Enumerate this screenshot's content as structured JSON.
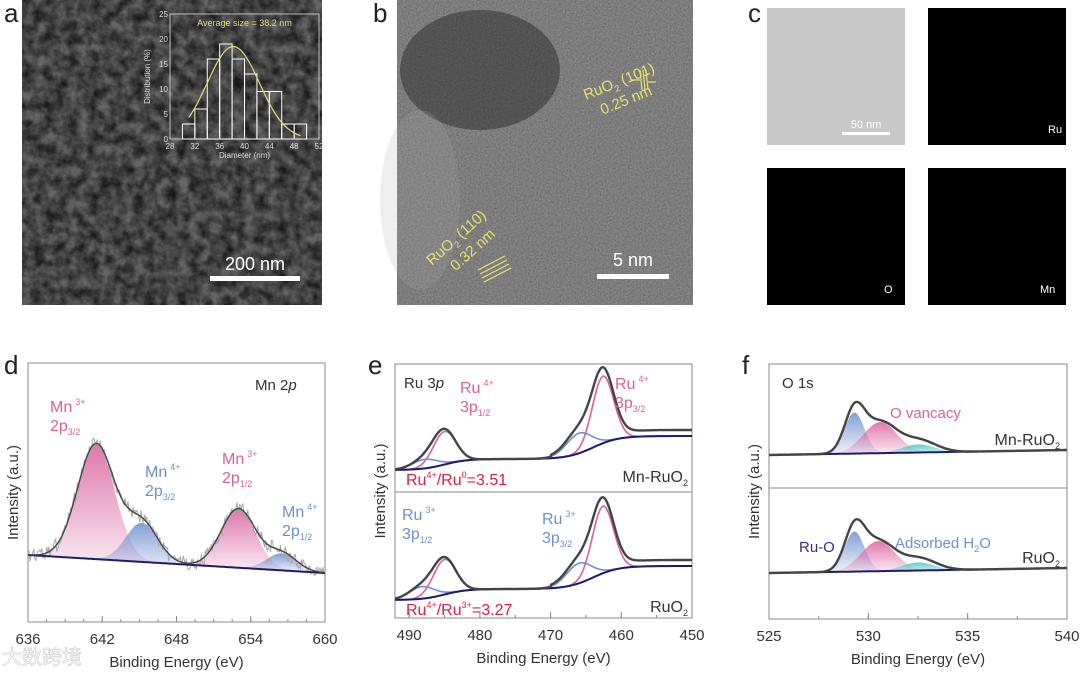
{
  "panels": {
    "a": {
      "label": "a",
      "scale_bar": "200 nm"
    },
    "b": {
      "label": "b",
      "scale_bar": "5 nm",
      "annot1": {
        "main": "RuO",
        "sub": "2",
        "hkl": " (101)",
        "d": "0.25 nm"
      },
      "annot2": {
        "main": "RuO",
        "sub": "2",
        "hkl": " (110)",
        "d": "0.32 nm"
      }
    },
    "c": {
      "label": "c",
      "scale_bar": "50 nm",
      "maps": [
        "Ru",
        "O",
        "Mn"
      ]
    },
    "d": {
      "label": "d"
    },
    "e": {
      "label": "e"
    },
    "f": {
      "label": "f"
    }
  },
  "colors": {
    "mn3": "#d9609f",
    "mn4": "#6f8fcf",
    "baseline": "#1e1a6e",
    "envelope": "#444444",
    "raw": "#a8a8a8",
    "teal": "#3fc8c0",
    "ratio": "#d8204a",
    "annot": "#e8e070"
  },
  "watermark": "大数跨境",
  "chart_data": [
    {
      "panel": "a-inset",
      "type": "bar",
      "title": "Average size = 38.2 nm",
      "xlabel": "Diameter (nm)",
      "ylabel": "Distribution (%)",
      "xlim": [
        28,
        52
      ],
      "ylim": [
        0,
        25
      ],
      "xticks": [
        "28",
        "32",
        "36",
        "40",
        "44",
        "48",
        "52"
      ],
      "yticks": [
        "0",
        "5",
        "10",
        "15",
        "20",
        "25"
      ],
      "bin_edges": [
        30,
        32,
        34,
        36,
        38,
        40,
        42,
        44,
        46,
        48,
        50
      ],
      "values": [
        3,
        6,
        16,
        19,
        16,
        13,
        9.5,
        9.5,
        3,
        3
      ],
      "fit": "gaussian",
      "fit_mean": 38.2
    },
    {
      "panel": "d",
      "type": "line",
      "annotation": {
        "main": "Mn 2",
        "ital": "p"
      },
      "xlabel": "Binding Energy (eV)",
      "ylabel": "Intensity (a.u.)",
      "xlim": [
        636,
        660
      ],
      "xticks": [
        "636",
        "642",
        "648",
        "654",
        "660"
      ],
      "components": [
        {
          "ion": "Mn",
          "charge": "3+",
          "orbital": "2p",
          "j": "3/2",
          "center": 641.5,
          "height": 115,
          "sigma": 1.5,
          "color": "#d9609f"
        },
        {
          "ion": "Mn",
          "charge": "4+",
          "orbital": "2p",
          "j": "3/2",
          "center": 645.2,
          "height": 39,
          "sigma": 1.3,
          "color": "#6f8fcf"
        },
        {
          "ion": "Mn",
          "charge": "3+",
          "orbital": "2p",
          "j": "1/2",
          "center": 653.0,
          "height": 59,
          "sigma": 1.4,
          "color": "#d9609f"
        },
        {
          "ion": "Mn",
          "charge": "4+",
          "orbital": "2p",
          "j": "1/2",
          "center": 656.5,
          "height": 17,
          "sigma": 1.2,
          "color": "#6f8fcf"
        }
      ]
    },
    {
      "panel": "e",
      "type": "line",
      "annotation": {
        "main": "Ru 3",
        "ital": "p"
      },
      "xlabel": "Binding Energy (eV)",
      "ylabel": "Intensity (a.u.)",
      "xlim": [
        492,
        450
      ],
      "xticks": [
        "490",
        "480",
        "470",
        "460",
        "450"
      ],
      "series": [
        {
          "name": "Mn-RuO",
          "name_sub": "2",
          "ratio": {
            "a": "Ru",
            "a_sup": "4+",
            "b": "/Ru",
            "b_sup": "0",
            "val": "=3.51"
          },
          "components": [
            {
              "label": "Ru",
              "charge": "4+",
              "orbital": "3p",
              "j": "1/2",
              "center": 485.0,
              "height": 33,
              "sigma": 1.6,
              "color": "#d9609f"
            },
            {
              "label": "",
              "center": 487.8,
              "height": 9,
              "sigma": 1.8,
              "color": "#6f8fcf"
            },
            {
              "label": "Ru",
              "charge": "4+",
              "orbital": "3p",
              "j": "3/2",
              "center": 462.6,
              "height": 67,
              "sigma": 1.5,
              "color": "#d9609f"
            },
            {
              "label": "",
              "center": 466.0,
              "height": 20,
              "sigma": 1.8,
              "color": "#6f8fcf"
            }
          ]
        },
        {
          "name": "RuO",
          "name_sub": "2",
          "ratio": {
            "a": "Ru",
            "a_sup": "4+",
            "b": "/Ru",
            "b_sup": "3+",
            "val": "=3.27"
          },
          "components": [
            {
              "label": "",
              "center": 485.0,
              "height": 35,
              "sigma": 1.6,
              "color": "#d9609f"
            },
            {
              "label": "Ru",
              "charge": "3+",
              "orbital": "3p",
              "j": "1/2",
              "center": 488.2,
              "height": 12,
              "sigma": 1.8,
              "color": "#6f8fcf"
            },
            {
              "label": "",
              "center": 462.6,
              "height": 67,
              "sigma": 1.5,
              "color": "#d9609f"
            },
            {
              "label": "Ru",
              "charge": "3+",
              "orbital": "3p",
              "j": "3/2",
              "center": 466.0,
              "height": 20,
              "sigma": 1.8,
              "color": "#6f8fcf"
            }
          ]
        }
      ]
    },
    {
      "panel": "f",
      "type": "line",
      "annotation": "O 1s",
      "xlabel": "Binding Energy (eV)",
      "ylabel": "Intensity (a.u.)",
      "xlim": [
        525,
        540
      ],
      "xticks": [
        "525",
        "530",
        "535",
        "540"
      ],
      "labels": {
        "ruo": "Ru-O",
        "ovac": "O vancacy",
        "h2o_a": "Adsorbed H",
        "h2o_sub": "2",
        "h2o_b": "O"
      },
      "series": [
        {
          "name": "Mn-RuO",
          "name_sub": "2",
          "components": [
            {
              "center": 529.3,
              "height": 41,
              "sigma": 0.5,
              "color": "#6f8fcf"
            },
            {
              "center": 530.6,
              "height": 31,
              "sigma": 0.85,
              "color": "#d9609f"
            },
            {
              "center": 532.5,
              "height": 8,
              "sigma": 0.8,
              "color": "#3fc8c0"
            }
          ]
        },
        {
          "name": "RuO",
          "name_sub": "2",
          "components": [
            {
              "center": 529.3,
              "height": 40,
              "sigma": 0.5,
              "color": "#6f8fcf"
            },
            {
              "center": 530.5,
              "height": 30,
              "sigma": 0.85,
              "color": "#d9609f"
            },
            {
              "center": 532.5,
              "height": 8,
              "sigma": 0.8,
              "color": "#3fc8c0"
            }
          ]
        }
      ]
    }
  ]
}
